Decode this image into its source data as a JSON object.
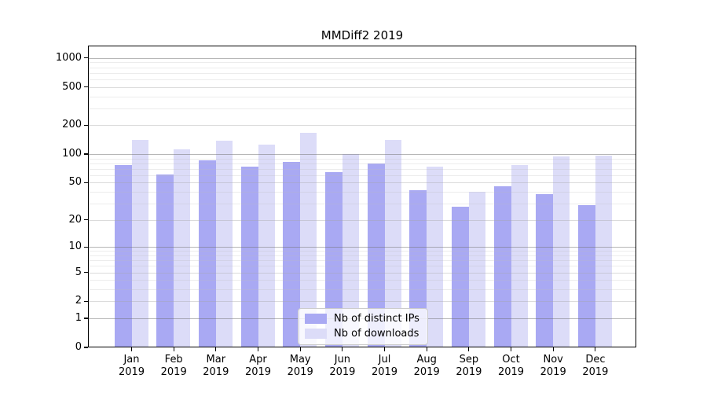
{
  "chart_data": {
    "type": "bar",
    "title": "MMDiff2 2019",
    "yscale": "symlog",
    "ylim": [
      0,
      1000
    ],
    "y_ticks": [
      1000,
      500,
      200,
      100,
      50,
      20,
      10,
      5,
      2,
      1,
      0
    ],
    "y_minor_ticks": [
      3,
      4,
      6,
      7,
      8,
      9,
      30,
      40,
      60,
      70,
      80,
      90,
      300,
      400,
      600,
      700,
      800,
      900
    ],
    "grid": true,
    "categories": [
      "Jan",
      "Feb",
      "Mar",
      "Apr",
      "May",
      "Jun",
      "Jul",
      "Aug",
      "Sep",
      "Oct",
      "Nov",
      "Dec"
    ],
    "category_year": "2019",
    "series": [
      {
        "name": "Nb of distinct IPs",
        "color": "#a9a9f3",
        "values": [
          77,
          61,
          86,
          74,
          83,
          65,
          80,
          42,
          28,
          46,
          38,
          29
        ]
      },
      {
        "name": "Nb of downloads",
        "color": "#dcdcf8",
        "values": [
          140,
          112,
          138,
          126,
          167,
          101,
          142,
          74,
          40,
          77,
          95,
          96
        ]
      }
    ],
    "legend": {
      "position": "lower center",
      "entries": [
        "Nb of distinct IPs",
        "Nb of downloads"
      ]
    }
  }
}
